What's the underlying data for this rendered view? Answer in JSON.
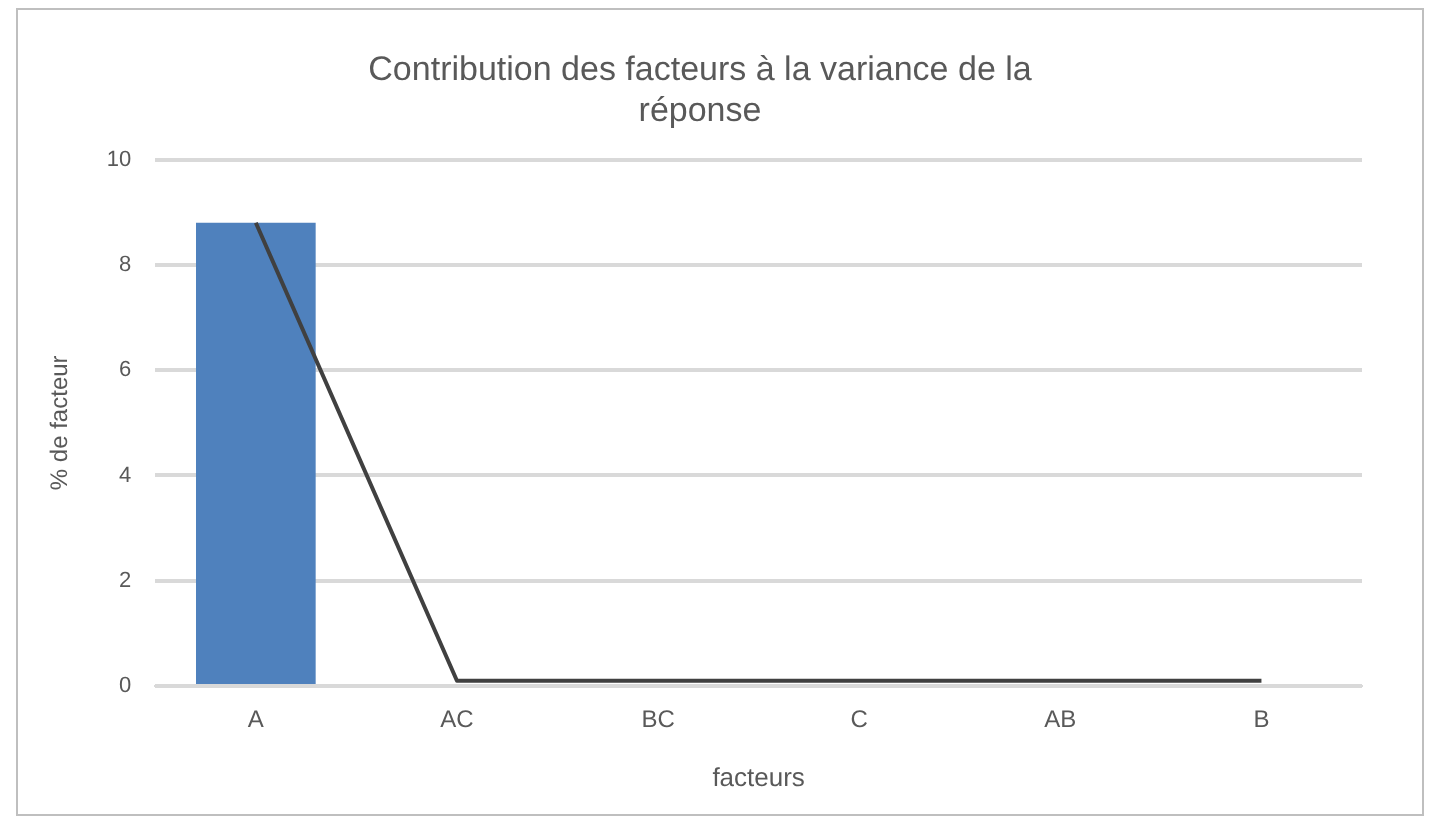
{
  "chart_data": {
    "type": "bar",
    "title": "Contribution des facteurs à la variance de la réponse",
    "xlabel": "facteurs",
    "ylabel": "% de facteur",
    "categories": [
      "A",
      "AC",
      "BC",
      "C",
      "AB",
      "B"
    ],
    "series": [
      {
        "color": "#4f81bd",
        "values": [
          8.8,
          0,
          0,
          0,
          0,
          0
        ]
      },
      {
        "type": "line",
        "color": "#404040",
        "values": [
          8.8,
          0.1,
          0.1,
          0.1,
          0.1,
          0.1
        ]
      }
    ],
    "ylim": [
      0,
      10
    ],
    "yticks": [
      0,
      2,
      4,
      6,
      8,
      10
    ],
    "grid": "y",
    "legend": false,
    "marker": "none"
  }
}
